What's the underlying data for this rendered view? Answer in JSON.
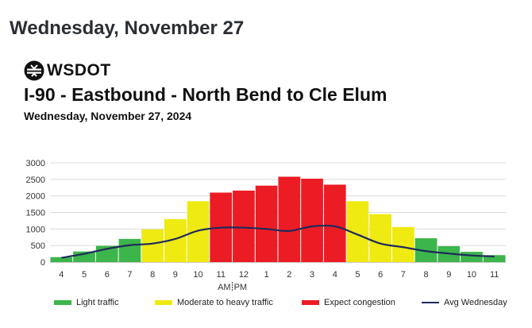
{
  "page": {
    "heading": "Wednesday, November 27"
  },
  "logo": {
    "text": "WSDOT"
  },
  "colors": {
    "light": "#3cb54a",
    "moderate": "#eeea12",
    "congestion": "#ec1c24",
    "avg_line": "#1f2a5c",
    "grid": "#dcdcdc"
  },
  "legend": {
    "light": "Light traffic",
    "moderate": "Moderate to heavy traffic",
    "congestion": "Expect congestion",
    "avg": "Avg Wednesday"
  },
  "chart_data": {
    "type": "bar",
    "title": "I-90 - Eastbound - North Bend to Cle Elum",
    "subtitle": "Wednesday, November 27, 2024",
    "xlabel": "",
    "ylabel": "",
    "ylim": [
      0,
      3000
    ],
    "yticks": [
      0,
      500,
      1000,
      1500,
      2000,
      2500,
      3000
    ],
    "grid": true,
    "legend_position": "bottom",
    "am_label": "AM",
    "pm_label": "PM",
    "categories": [
      "4",
      "5",
      "6",
      "7",
      "8",
      "9",
      "10",
      "11",
      "12",
      "1",
      "2",
      "3",
      "4",
      "5",
      "6",
      "7",
      "8",
      "9",
      "10",
      "11"
    ],
    "values": [
      150,
      320,
      490,
      700,
      990,
      1300,
      1840,
      2100,
      2160,
      2310,
      2580,
      2520,
      2340,
      1840,
      1450,
      1060,
      720,
      480,
      310,
      210
    ],
    "levels": [
      "light",
      "light",
      "light",
      "light",
      "moderate",
      "moderate",
      "moderate",
      "congestion",
      "congestion",
      "congestion",
      "congestion",
      "congestion",
      "congestion",
      "moderate",
      "moderate",
      "moderate",
      "light",
      "light",
      "light",
      "light"
    ],
    "series": [
      {
        "name": "Avg Wednesday",
        "type": "line",
        "values": [
          130,
          250,
          400,
          510,
          560,
          700,
          950,
          1040,
          1040,
          1000,
          940,
          1080,
          1080,
          830,
          560,
          450,
          330,
          260,
          200,
          170
        ]
      }
    ]
  }
}
